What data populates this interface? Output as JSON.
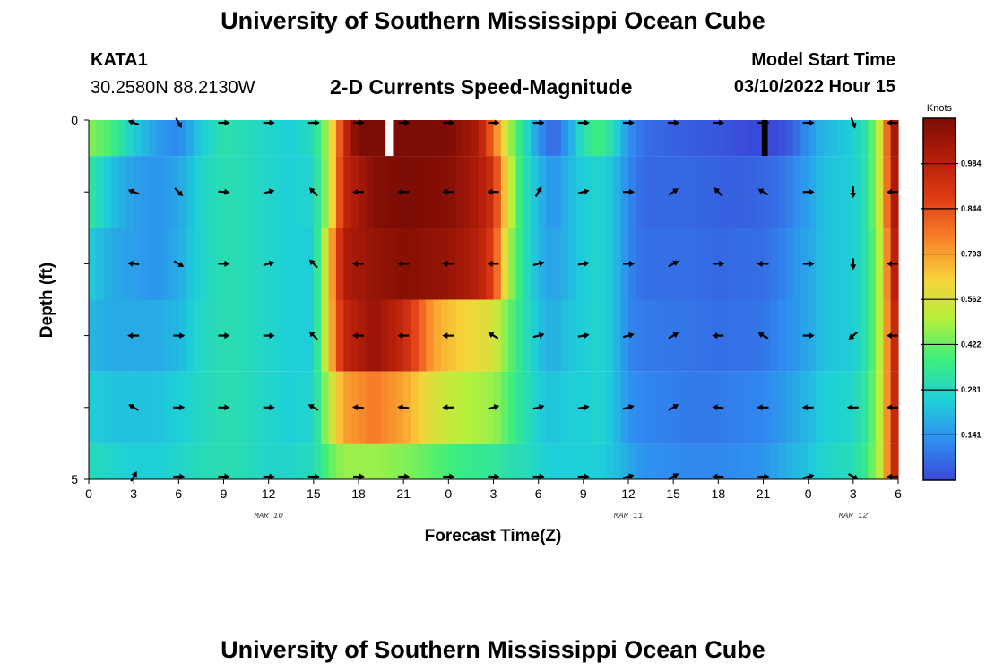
{
  "header": {
    "title": "University of Southern Mississippi Ocean Cube",
    "station_id": "KATA1",
    "coordinates": "30.2580N  88.2130W",
    "subtitle": "2-D Currents Speed-Magnitude",
    "model_start_label": "Model Start Time",
    "model_start_value": "03/10/2022 Hour 15",
    "bottom_title": "University of Southern Mississippi Ocean Cube"
  },
  "colors": {
    "scale": [
      "#3a4ad8",
      "#2f8ef0",
      "#1ed0d8",
      "#3cee7c",
      "#b4f03c",
      "#f8d23a",
      "#f8822a",
      "#e03c14",
      "#b41e0a",
      "#7c0c04"
    ],
    "arrow": "#000000",
    "missing_light": "#ffffff",
    "missing_dark": "#000000"
  },
  "chart_data": {
    "type": "heatmap",
    "title": "2-D Currents Speed-Magnitude",
    "xlabel": "Forecast Time(Z)",
    "ylabel": "Depth (ft)",
    "units": "Knots",
    "xlim": [
      0,
      54
    ],
    "ylim": [
      5,
      0
    ],
    "x_ticks": [
      0,
      3,
      6,
      9,
      12,
      15,
      18,
      21,
      24,
      27,
      30,
      33,
      36,
      39,
      42,
      45,
      48,
      51,
      54
    ],
    "x_tick_labels": [
      "0",
      "3",
      "6",
      "9",
      "12",
      "15",
      "18",
      "21",
      "0",
      "3",
      "6",
      "9",
      "12",
      "15",
      "18",
      "21",
      "0",
      "3",
      "6"
    ],
    "y_tick_labels": [
      "0",
      "5"
    ],
    "date_labels": [
      {
        "text": "MAR 10",
        "x": 12
      },
      {
        "text": "MAR 11",
        "x": 36
      },
      {
        "text": "MAR 12",
        "x": 51
      }
    ],
    "colorbar": {
      "min": 0.0,
      "max": 1.125,
      "ticks": [
        "0.984",
        "0.844",
        "0.703",
        "0.562",
        "0.422",
        "0.281",
        "0.141"
      ]
    },
    "rows": [
      {
        "depth": "0-0.5",
        "k": [
          [
            0,
            0.4
          ],
          [
            1.5,
            0.34
          ],
          [
            3,
            0.22
          ],
          [
            4.5,
            0.14
          ],
          [
            6,
            0.1
          ],
          [
            7.5,
            0.22
          ],
          [
            9,
            0.28
          ],
          [
            10.5,
            0.26
          ],
          [
            12,
            0.24
          ],
          [
            13.5,
            0.22
          ],
          [
            15,
            0.26
          ],
          [
            16,
            0.45
          ],
          [
            17,
            0.82
          ],
          [
            18,
            1.02
          ],
          [
            19,
            1.02
          ],
          [
            20,
            1.0
          ],
          [
            22,
            1.0
          ],
          [
            24,
            1.0
          ],
          [
            26,
            0.9
          ],
          [
            27,
            0.7
          ],
          [
            28,
            0.45
          ],
          [
            29,
            0.28
          ],
          [
            30,
            0.12
          ],
          [
            31,
            0.04
          ],
          [
            32,
            0.14
          ],
          [
            33,
            0.28
          ],
          [
            34,
            0.34
          ],
          [
            35,
            0.26
          ],
          [
            36,
            0.12
          ],
          [
            37,
            0.06
          ],
          [
            39,
            0.04
          ],
          [
            42,
            0.02
          ],
          [
            44,
            0.0
          ],
          [
            45,
            0.0
          ],
          [
            46,
            0.0
          ],
          [
            47,
            0.04
          ],
          [
            48,
            0.12
          ],
          [
            49,
            0.18
          ],
          [
            51,
            0.22
          ],
          [
            52,
            0.3
          ],
          [
            53,
            0.55
          ],
          [
            53.6,
            0.92
          ],
          [
            54,
            0.92
          ]
        ],
        "missing": [
          {
            "x0": 19.8,
            "x1": 20.3,
            "c": "light"
          },
          {
            "x0": 44.9,
            "x1": 45.3,
            "c": "dark"
          }
        ]
      },
      {
        "depth": "0.5-1.5",
        "k": [
          [
            0,
            0.3
          ],
          [
            1.5,
            0.2
          ],
          [
            3,
            0.14
          ],
          [
            4.5,
            0.12
          ],
          [
            6,
            0.15
          ],
          [
            7.5,
            0.24
          ],
          [
            9,
            0.27
          ],
          [
            10.5,
            0.26
          ],
          [
            12,
            0.24
          ],
          [
            13.5,
            0.22
          ],
          [
            15,
            0.24
          ],
          [
            16,
            0.45
          ],
          [
            17,
            0.85
          ],
          [
            19,
            0.98
          ],
          [
            21,
            1.0
          ],
          [
            24,
            0.98
          ],
          [
            26,
            0.9
          ],
          [
            27,
            0.82
          ],
          [
            28,
            0.5
          ],
          [
            29,
            0.28
          ],
          [
            30,
            0.18
          ],
          [
            31,
            0.12
          ],
          [
            32,
            0.18
          ],
          [
            33,
            0.22
          ],
          [
            34,
            0.24
          ],
          [
            35,
            0.2
          ],
          [
            36,
            0.1
          ],
          [
            37,
            0.05
          ],
          [
            40,
            0.05
          ],
          [
            42,
            0.04
          ],
          [
            44,
            0.04
          ],
          [
            45,
            0.05
          ],
          [
            46,
            0.06
          ],
          [
            47,
            0.1
          ],
          [
            48,
            0.14
          ],
          [
            49,
            0.2
          ],
          [
            51,
            0.22
          ],
          [
            52,
            0.3
          ],
          [
            53,
            0.55
          ],
          [
            53.6,
            0.9
          ],
          [
            54,
            0.9
          ]
        ]
      },
      {
        "depth": "1.5-2.5",
        "k": [
          [
            0,
            0.22
          ],
          [
            1.5,
            0.16
          ],
          [
            3,
            0.14
          ],
          [
            4.5,
            0.12
          ],
          [
            6,
            0.16
          ],
          [
            7.5,
            0.24
          ],
          [
            9,
            0.27
          ],
          [
            10.5,
            0.26
          ],
          [
            12,
            0.24
          ],
          [
            13.5,
            0.22
          ],
          [
            15,
            0.22
          ],
          [
            16,
            0.55
          ],
          [
            17,
            0.9
          ],
          [
            19,
            0.95
          ],
          [
            21,
            0.98
          ],
          [
            24,
            0.95
          ],
          [
            26,
            0.88
          ],
          [
            27,
            0.78
          ],
          [
            28,
            0.45
          ],
          [
            29,
            0.28
          ],
          [
            30,
            0.18
          ],
          [
            31,
            0.14
          ],
          [
            32,
            0.18
          ],
          [
            33,
            0.22
          ],
          [
            34,
            0.24
          ],
          [
            35,
            0.2
          ],
          [
            36,
            0.1
          ],
          [
            37,
            0.06
          ],
          [
            40,
            0.06
          ],
          [
            42,
            0.05
          ],
          [
            45,
            0.06
          ],
          [
            46,
            0.08
          ],
          [
            47,
            0.12
          ],
          [
            48,
            0.15
          ],
          [
            49,
            0.2
          ],
          [
            51,
            0.22
          ],
          [
            52,
            0.3
          ],
          [
            53,
            0.5
          ],
          [
            53.6,
            0.88
          ],
          [
            54,
            0.88
          ]
        ]
      },
      {
        "depth": "2.5-3.5",
        "k": [
          [
            0,
            0.18
          ],
          [
            1.5,
            0.16
          ],
          [
            3,
            0.16
          ],
          [
            4.5,
            0.16
          ],
          [
            6,
            0.18
          ],
          [
            7.5,
            0.25
          ],
          [
            9,
            0.27
          ],
          [
            10.5,
            0.26
          ],
          [
            12,
            0.24
          ],
          [
            13.5,
            0.22
          ],
          [
            15,
            0.22
          ],
          [
            16,
            0.55
          ],
          [
            17,
            0.85
          ],
          [
            19,
            0.95
          ],
          [
            21,
            0.85
          ],
          [
            23,
            0.62
          ],
          [
            25,
            0.55
          ],
          [
            27,
            0.5
          ],
          [
            28,
            0.38
          ],
          [
            29,
            0.28
          ],
          [
            30,
            0.2
          ],
          [
            31,
            0.16
          ],
          [
            32,
            0.2
          ],
          [
            33,
            0.22
          ],
          [
            34,
            0.24
          ],
          [
            35,
            0.2
          ],
          [
            36,
            0.1
          ],
          [
            37,
            0.08
          ],
          [
            40,
            0.07
          ],
          [
            42,
            0.06
          ],
          [
            45,
            0.07
          ],
          [
            46,
            0.1
          ],
          [
            47,
            0.12
          ],
          [
            48,
            0.15
          ],
          [
            49,
            0.2
          ],
          [
            51,
            0.22
          ],
          [
            52,
            0.3
          ],
          [
            53,
            0.5
          ],
          [
            53.6,
            0.85
          ],
          [
            54,
            0.85
          ]
        ]
      },
      {
        "depth": "3.5-4.5",
        "k": [
          [
            0,
            0.22
          ],
          [
            1.5,
            0.2
          ],
          [
            3,
            0.2
          ],
          [
            4.5,
            0.2
          ],
          [
            6,
            0.22
          ],
          [
            7.5,
            0.25
          ],
          [
            9,
            0.27
          ],
          [
            10.5,
            0.26
          ],
          [
            12,
            0.24
          ],
          [
            13.5,
            0.22
          ],
          [
            15,
            0.24
          ],
          [
            16,
            0.45
          ],
          [
            17,
            0.62
          ],
          [
            19,
            0.68
          ],
          [
            21,
            0.62
          ],
          [
            23,
            0.5
          ],
          [
            25,
            0.45
          ],
          [
            27,
            0.42
          ],
          [
            28,
            0.35
          ],
          [
            29,
            0.28
          ],
          [
            30,
            0.22
          ],
          [
            31,
            0.2
          ],
          [
            32,
            0.22
          ],
          [
            33,
            0.22
          ],
          [
            34,
            0.24
          ],
          [
            35,
            0.2
          ],
          [
            36,
            0.12
          ],
          [
            37,
            0.1
          ],
          [
            40,
            0.08
          ],
          [
            42,
            0.08
          ],
          [
            45,
            0.1
          ],
          [
            46,
            0.12
          ],
          [
            47,
            0.15
          ],
          [
            48,
            0.18
          ],
          [
            49,
            0.22
          ],
          [
            51,
            0.24
          ],
          [
            52,
            0.32
          ],
          [
            53,
            0.5
          ],
          [
            53.6,
            0.85
          ],
          [
            54,
            0.85
          ]
        ]
      },
      {
        "depth": "4.5-5",
        "k": [
          [
            0,
            0.26
          ],
          [
            1.5,
            0.24
          ],
          [
            3,
            0.22
          ],
          [
            4.5,
            0.22
          ],
          [
            6,
            0.24
          ],
          [
            7.5,
            0.26
          ],
          [
            9,
            0.27
          ],
          [
            10.5,
            0.26
          ],
          [
            12,
            0.24
          ],
          [
            13.5,
            0.24
          ],
          [
            15,
            0.26
          ],
          [
            16,
            0.36
          ],
          [
            17,
            0.42
          ],
          [
            19,
            0.42
          ],
          [
            21,
            0.4
          ],
          [
            23,
            0.36
          ],
          [
            25,
            0.32
          ],
          [
            27,
            0.3
          ],
          [
            28,
            0.28
          ],
          [
            29,
            0.26
          ],
          [
            30,
            0.24
          ],
          [
            31,
            0.22
          ],
          [
            32,
            0.22
          ],
          [
            33,
            0.22
          ],
          [
            34,
            0.22
          ],
          [
            35,
            0.2
          ],
          [
            36,
            0.16
          ],
          [
            37,
            0.12
          ],
          [
            40,
            0.1
          ],
          [
            42,
            0.1
          ],
          [
            45,
            0.12
          ],
          [
            46,
            0.15
          ],
          [
            47,
            0.18
          ],
          [
            48,
            0.2
          ],
          [
            49,
            0.24
          ],
          [
            51,
            0.26
          ],
          [
            52,
            0.34
          ],
          [
            53,
            0.5
          ],
          [
            53.6,
            0.85
          ],
          [
            54,
            0.85
          ]
        ]
      }
    ],
    "arrows": {
      "times": [
        3,
        6,
        9,
        12,
        15,
        18,
        21,
        24,
        27,
        30,
        33,
        36,
        39,
        42,
        45,
        48,
        51,
        54
      ],
      "depths": [
        0,
        1,
        2,
        3,
        4,
        5
      ],
      "directions_deg": [
        [
          160,
          300,
          0,
          0,
          0,
          0,
          0,
          0,
          0,
          0,
          0,
          0,
          0,
          0,
          0,
          0,
          290,
          180
        ],
        [
          160,
          315,
          355,
          15,
          135,
          180,
          180,
          180,
          180,
          60,
          15,
          0,
          35,
          135,
          150,
          0,
          270,
          180
        ],
        [
          175,
          330,
          0,
          15,
          135,
          180,
          180,
          180,
          180,
          15,
          10,
          0,
          30,
          0,
          180,
          0,
          270,
          180
        ],
        [
          180,
          0,
          0,
          0,
          135,
          180,
          180,
          180,
          150,
          15,
          10,
          15,
          30,
          180,
          150,
          0,
          220,
          180
        ],
        [
          150,
          0,
          0,
          0,
          150,
          175,
          175,
          180,
          15,
          15,
          10,
          15,
          30,
          175,
          180,
          180,
          180,
          180
        ],
        [
          60,
          0,
          0,
          0,
          0,
          0,
          0,
          0,
          0,
          0,
          0,
          15,
          30,
          180,
          0,
          15,
          330,
          180
        ]
      ]
    }
  }
}
